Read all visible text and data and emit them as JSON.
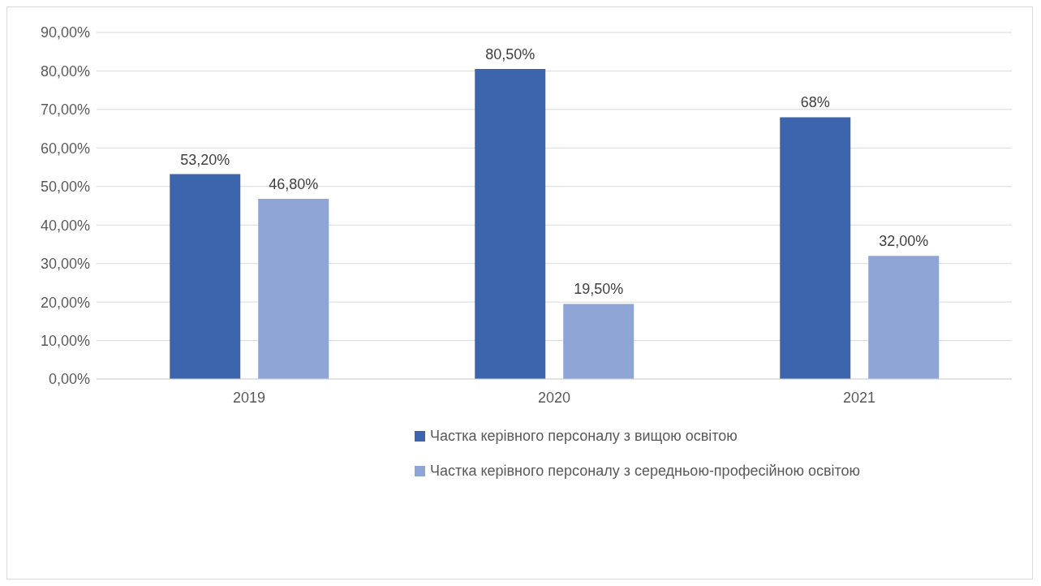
{
  "chart_data": {
    "type": "bar",
    "categories": [
      "2019",
      "2020",
      "2021"
    ],
    "series": [
      {
        "name": "Частка керівного персоналу з вищою освітою",
        "color": "#3d65ae",
        "values": [
          53.2,
          80.5,
          68
        ],
        "value_labels": [
          "53,20%",
          "80,50%",
          "68%"
        ]
      },
      {
        "name": "Частка керівного персоналу з середньою-професійною освітою",
        "color": "#8fa5d6",
        "values": [
          46.8,
          19.5,
          32
        ],
        "value_labels": [
          "46,80%",
          "19,50%",
          "32,00%"
        ]
      }
    ],
    "ylim": [
      0,
      90
    ],
    "yticks": [
      {
        "value": 0,
        "label": "0,00%"
      },
      {
        "value": 10,
        "label": "10,00%"
      },
      {
        "value": 20,
        "label": "20,00%"
      },
      {
        "value": 30,
        "label": "30,00%"
      },
      {
        "value": 40,
        "label": "40,00%"
      },
      {
        "value": 50,
        "label": "50,00%"
      },
      {
        "value": 60,
        "label": "60,00%"
      },
      {
        "value": 70,
        "label": "70,00%"
      },
      {
        "value": 80,
        "label": "80,00%"
      },
      {
        "value": 90,
        "label": "90,00%"
      }
    ],
    "grid": "y",
    "legend": "bottom"
  }
}
